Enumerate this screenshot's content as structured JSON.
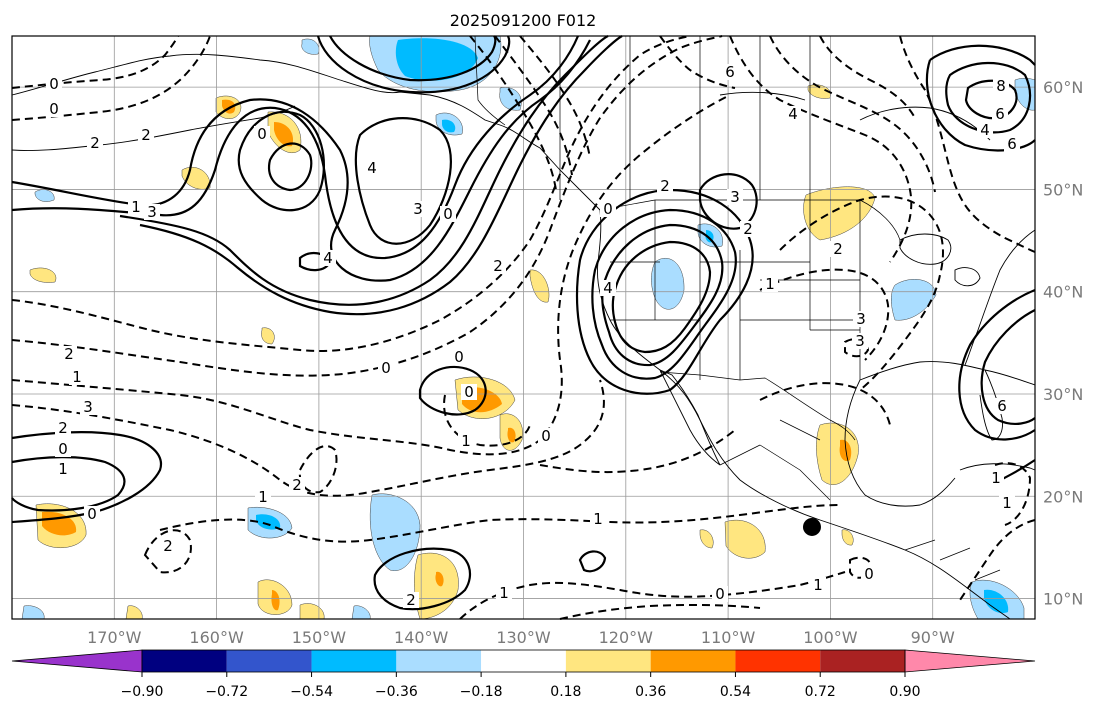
{
  "title": "2025091200 F012",
  "map": {
    "lon_range": [
      -180,
      -80
    ],
    "lat_range": [
      8,
      65
    ],
    "lon_ticks": [
      {
        "value": -170,
        "label": "170°W"
      },
      {
        "value": -160,
        "label": "160°W"
      },
      {
        "value": -150,
        "label": "150°W"
      },
      {
        "value": -140,
        "label": "140°W"
      },
      {
        "value": -130,
        "label": "130°W"
      },
      {
        "value": -120,
        "label": "120°W"
      },
      {
        "value": -110,
        "label": "110°W"
      },
      {
        "value": -100,
        "label": "100°W"
      },
      {
        "value": -90,
        "label": "90°W"
      }
    ],
    "lat_ticks": [
      {
        "value": 10,
        "label": "10°N"
      },
      {
        "value": 20,
        "label": "20°N"
      },
      {
        "value": 30,
        "label": "30°N"
      },
      {
        "value": 40,
        "label": "40°N"
      },
      {
        "value": 50,
        "label": "50°N"
      },
      {
        "value": 60,
        "label": "60°N"
      }
    ],
    "marker": {
      "lon": -101.8,
      "lat": 17.0,
      "color": "#000000"
    },
    "contour_labels": [
      "0",
      "0",
      "2",
      "2",
      "1",
      "3",
      "0",
      "4",
      "3",
      "4",
      "0",
      "2",
      "6",
      "4",
      "3",
      "6",
      "8",
      "4",
      "6",
      "2",
      "1",
      "2",
      "3",
      "4",
      "0",
      "2",
      "2",
      "1",
      "3",
      "2",
      "0",
      "1",
      "0",
      "2",
      "2",
      "1",
      "0",
      "1",
      "0",
      "0",
      "0",
      "1",
      "1",
      "2",
      "0",
      "1",
      "0",
      "1",
      "1",
      "6",
      "3"
    ]
  },
  "colorbar": {
    "colors": [
      "#9933cc",
      "#000080",
      "#3355cc",
      "#00bbff",
      "#aaddff",
      "#ffffff",
      "#ffe680",
      "#ff9900",
      "#ff3300",
      "#aa2222",
      "#ff88aa"
    ],
    "ticks": [
      "−0.90",
      "−0.72",
      "−0.54",
      "−0.36",
      "−0.18",
      "0.18",
      "0.36",
      "0.54",
      "0.72",
      "0.90"
    ]
  }
}
